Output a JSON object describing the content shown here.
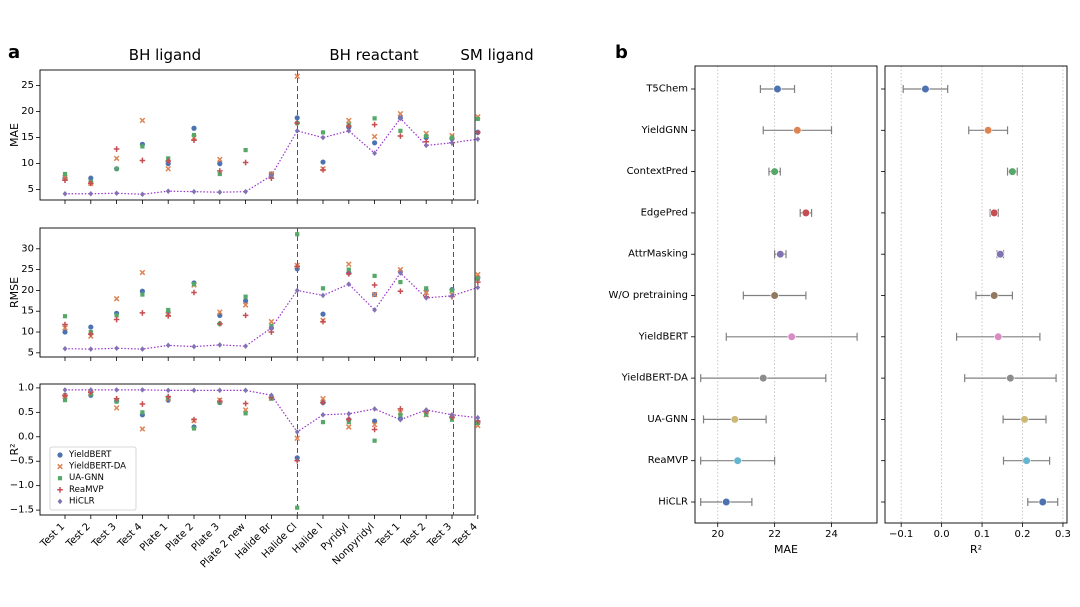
{
  "panel_labels": {
    "a": "a",
    "b": "b"
  },
  "section_labels": [
    "BH ligand",
    "BH reactant",
    "SM ligand"
  ],
  "legend": {
    "placement": "bottom-left of R² panel",
    "entries": [
      "YieldBERT",
      "YieldBERT-DA",
      "UA-GNN",
      "ReaMVP",
      "HiCLR"
    ]
  },
  "colors": {
    "YieldBERT": "#4c72b0",
    "YieldBERT-DA": "#dd8452",
    "UA-GNN": "#55a868",
    "ReaMVP": "#c44e52",
    "HiCLR": "#8172b3",
    "T5Chem": "#4c72b0",
    "YieldGNN": "#dd8452",
    "ContextPred": "#55a868",
    "EdgePred": "#c44e52",
    "AttrMasking": "#8172b3",
    "W/O pretraining": "#937860",
    "YieldBERT-B": "#da8bc3",
    "YieldBERT-DA-B": "#8c8c8c",
    "UA-GNN-B": "#ccb974",
    "ReaMVP-B": "#64b5cd",
    "HiCLR-B": "#4c72b0",
    "errorbar": "#808080",
    "hiclr_line": "#9933cc"
  },
  "chart_data": [
    {
      "type": "scatter",
      "panel": "a",
      "ylabel": "MAE",
      "ylim": [
        3,
        28
      ],
      "yticks": [
        5,
        10,
        15,
        20,
        25
      ],
      "categories": [
        "Test 1",
        "Test 2",
        "Test 3",
        "Test 4",
        "Plate 1",
        "Plate 2",
        "Plate 3",
        "Plate 2 new",
        "Halide Br",
        "Halide Cl",
        "Halide I",
        "Pyridyl",
        "Nonpyridyl",
        "Test 1",
        "Test 2",
        "Test 3",
        "Test 4"
      ],
      "series": [
        {
          "name": "YieldBERT",
          "marker": "circle",
          "values": [
            7.2,
            7.2,
            9.0,
            13.7,
            10.0,
            16.8,
            10.0,
            null,
            8.0,
            18.8,
            10.3,
            17.0,
            14.0,
            18.8,
            15.0,
            14.8,
            16.0
          ]
        },
        {
          "name": "YieldBERT-DA",
          "marker": "x",
          "values": [
            7.3,
            6.2,
            11.0,
            18.3,
            9.0,
            15.0,
            10.8,
            null,
            8.0,
            26.8,
            9.0,
            18.3,
            15.2,
            19.6,
            15.8,
            15.4,
            19.0
          ]
        },
        {
          "name": "UA-GNN",
          "marker": "square",
          "values": [
            8.0,
            6.5,
            9.0,
            13.3,
            11.0,
            15.5,
            8.0,
            12.6,
            7.5,
            17.8,
            16.0,
            17.5,
            18.7,
            16.3,
            15.3,
            15.0,
            18.6
          ]
        },
        {
          "name": "ReaMVP",
          "marker": "plus",
          "values": [
            6.8,
            6.2,
            12.8,
            10.6,
            10.5,
            14.5,
            8.6,
            10.2,
            7.2,
            17.8,
            8.8,
            17.2,
            17.5,
            15.3,
            14.2,
            14.0,
            16.0
          ]
        },
        {
          "name": "HiCLR",
          "marker": "diamond",
          "connected": true,
          "values": [
            4.2,
            4.2,
            4.3,
            4.1,
            4.7,
            4.6,
            4.5,
            4.6,
            7.7,
            16.3,
            15.0,
            16.3,
            12.0,
            18.7,
            13.5,
            14.0,
            14.7
          ]
        }
      ]
    },
    {
      "type": "scatter",
      "panel": "a",
      "ylabel": "RMSE",
      "ylim": [
        4,
        35
      ],
      "yticks": [
        5,
        10,
        15,
        20,
        25,
        30
      ],
      "categories": [
        "Test 1",
        "Test 2",
        "Test 3",
        "Test 4",
        "Plate 1",
        "Plate 2",
        "Plate 3",
        "Plate 2 new",
        "Halide Br",
        "Halide Cl",
        "Halide I",
        "Pyridyl",
        "Nonpyridyl",
        "Test 1",
        "Test 2",
        "Test 3",
        "Test 4"
      ],
      "series": [
        {
          "name": "YieldBERT",
          "marker": "circle",
          "values": [
            10.0,
            11.2,
            14.5,
            19.8,
            14.7,
            21.8,
            14.0,
            17.5,
            11.0,
            25.2,
            14.3,
            24.2,
            19.0,
            24.5,
            20.0,
            20.2,
            23.0
          ]
        },
        {
          "name": "YieldBERT-DA",
          "marker": "x",
          "values": [
            11.0,
            9.0,
            18.0,
            24.3,
            14.2,
            21.3,
            14.8,
            16.5,
            12.5,
            26.0,
            12.8,
            26.3,
            19.0,
            25.0,
            19.5,
            19.0,
            23.8
          ]
        },
        {
          "name": "UA-GNN",
          "marker": "square",
          "values": [
            13.8,
            10.0,
            14.0,
            19.0,
            15.3,
            21.5,
            12.0,
            18.5,
            11.5,
            33.5,
            20.5,
            25.0,
            23.5,
            22.0,
            20.5,
            20.0,
            22.8
          ]
        },
        {
          "name": "ReaMVP",
          "marker": "plus",
          "values": [
            11.8,
            9.5,
            13.0,
            14.6,
            13.9,
            19.5,
            12.0,
            14.0,
            10.0,
            25.8,
            12.5,
            24.0,
            21.3,
            19.8,
            18.5,
            18.5,
            22.0
          ]
        },
        {
          "name": "HiCLR",
          "marker": "diamond",
          "connected": true,
          "values": [
            6.0,
            5.9,
            6.1,
            5.9,
            6.8,
            6.5,
            6.9,
            6.6,
            11.0,
            20.0,
            18.8,
            21.5,
            15.3,
            24.2,
            18.2,
            18.7,
            20.7
          ]
        }
      ]
    },
    {
      "type": "scatter",
      "panel": "a",
      "ylabel": "R²",
      "ylim": [
        -1.6,
        1.08
      ],
      "yticks": [
        1.0,
        0.5,
        0.0,
        -0.5,
        -1.0,
        -1.5
      ],
      "ytick_labels": [
        "1.0",
        "0.5",
        "0.0",
        "−0.5",
        "−1.0",
        "−1.5"
      ],
      "categories": [
        "Test 1",
        "Test 2",
        "Test 3",
        "Test 4",
        "Plate 1",
        "Plate 2",
        "Plate 3",
        "Plate 2 new",
        "Halide Br",
        "Halide Cl",
        "Halide I",
        "Pyridyl",
        "Nonpyridyl",
        "Test 1",
        "Test 2",
        "Test 3",
        "Test 4"
      ],
      "series": [
        {
          "name": "YieldBERT",
          "marker": "circle",
          "values": [
            0.85,
            0.85,
            0.73,
            0.45,
            0.75,
            0.2,
            0.7,
            null,
            0.8,
            -0.43,
            0.7,
            0.35,
            0.32,
            0.37,
            0.5,
            0.4,
            0.3
          ]
        },
        {
          "name": "YieldBERT-DA",
          "marker": "x",
          "values": [
            0.83,
            0.9,
            0.59,
            0.16,
            0.78,
            0.33,
            0.75,
            0.55,
            0.79,
            -0.03,
            0.78,
            0.2,
            0.25,
            0.5,
            0.45,
            0.42,
            0.23
          ]
        },
        {
          "name": "UA-GNN",
          "marker": "square",
          "values": [
            0.75,
            0.87,
            0.72,
            0.5,
            0.8,
            0.17,
            0.7,
            0.48,
            0.78,
            -1.45,
            0.3,
            0.3,
            -0.08,
            0.45,
            0.45,
            0.35,
            0.28
          ]
        },
        {
          "name": "ReaMVP",
          "marker": "plus",
          "values": [
            0.84,
            0.91,
            0.78,
            0.67,
            0.82,
            0.35,
            0.73,
            0.68,
            0.8,
            -0.49,
            0.7,
            0.36,
            0.15,
            0.57,
            0.52,
            0.4,
            0.32
          ]
        },
        {
          "name": "HiCLR",
          "marker": "diamond",
          "connected": true,
          "values": [
            0.96,
            0.96,
            0.96,
            0.96,
            0.95,
            0.95,
            0.95,
            0.95,
            0.85,
            0.1,
            0.45,
            0.47,
            0.57,
            0.35,
            0.55,
            0.45,
            0.39
          ]
        }
      ]
    },
    {
      "type": "errorbar",
      "panel": "b",
      "xlabel": "MAE",
      "xlim": [
        19.2,
        25.6
      ],
      "xticks": [
        20,
        22,
        24
      ],
      "grid": "vertical dotted",
      "categories": [
        "T5Chem",
        "YieldGNN",
        "ContextPred",
        "EdgePred",
        "AttrMasking",
        "W/O pretraining",
        "YieldBERT",
        "YieldBERT-DA",
        "UA-GNN",
        "ReaMVP",
        "HiCLR"
      ],
      "values": [
        22.1,
        22.8,
        22.0,
        23.1,
        22.2,
        22.0,
        22.6,
        21.6,
        20.6,
        20.7,
        20.3
      ],
      "errors": [
        0.6,
        1.2,
        0.2,
        0.2,
        0.2,
        1.1,
        2.3,
        2.2,
        1.1,
        1.3,
        0.9
      ]
    },
    {
      "type": "errorbar",
      "panel": "b",
      "xlabel": "R²",
      "xlim": [
        -0.14,
        0.31
      ],
      "xticks": [
        -0.1,
        0.0,
        0.1,
        0.2,
        0.3
      ],
      "xtick_labels": [
        "−0.1",
        "0.0",
        "0.1",
        "0.2",
        "0.3"
      ],
      "grid": "vertical dotted",
      "categories": [
        "T5Chem",
        "YieldGNN",
        "ContextPred",
        "EdgePred",
        "AttrMasking",
        "W/O pretraining",
        "YieldBERT",
        "YieldBERT-DA",
        "UA-GNN",
        "ReaMVP",
        "HiCLR"
      ],
      "values": [
        -0.04,
        0.115,
        0.175,
        0.13,
        0.145,
        0.13,
        0.14,
        0.17,
        0.205,
        0.21,
        0.25
      ],
      "errors": [
        0.055,
        0.048,
        0.012,
        0.01,
        0.008,
        0.045,
        0.103,
        0.113,
        0.053,
        0.057,
        0.037
      ]
    }
  ]
}
